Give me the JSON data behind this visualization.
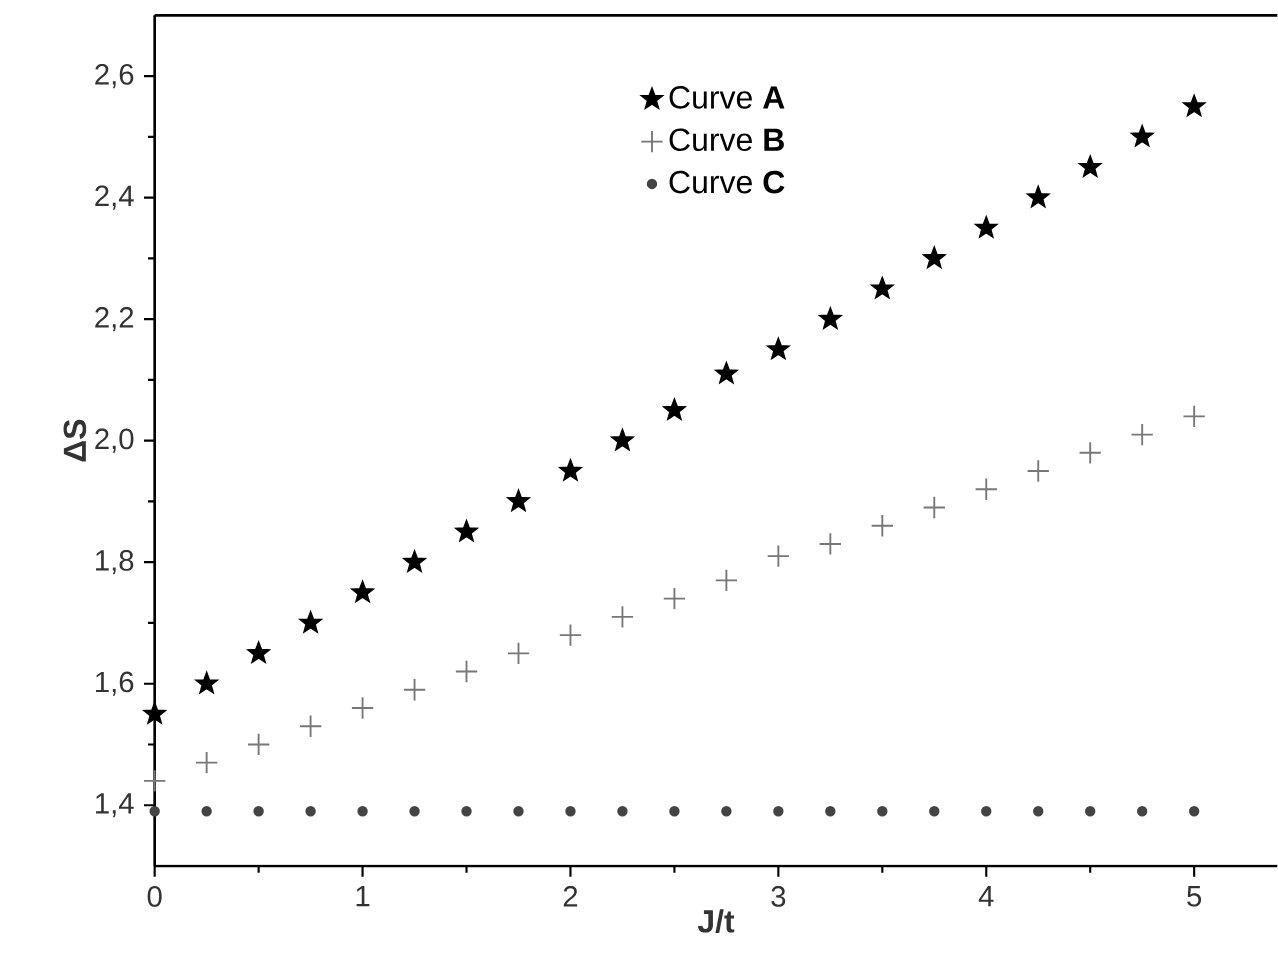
{
  "chart_data": {
    "type": "scatter",
    "xlabel": "J/t",
    "ylabel": "ΔS",
    "x": [
      0,
      0.25,
      0.5,
      0.75,
      1,
      1.25,
      1.5,
      1.75,
      2,
      2.25,
      2.5,
      2.75,
      3,
      3.25,
      3.5,
      3.75,
      4,
      4.25,
      4.5,
      4.75,
      5
    ],
    "series": [
      {
        "name": "Curve **A**",
        "color": "#000000",
        "marker": "star",
        "values": [
          1.55,
          1.6,
          1.65,
          1.7,
          1.75,
          1.8,
          1.85,
          1.9,
          1.95,
          2.0,
          2.05,
          2.11,
          2.15,
          2.2,
          2.25,
          2.3,
          2.35,
          2.4,
          2.45,
          2.5,
          2.55
        ]
      },
      {
        "name": "Curve **B**",
        "color": "#777777",
        "marker": "cross",
        "values": [
          1.44,
          1.47,
          1.5,
          1.53,
          1.56,
          1.59,
          1.62,
          1.65,
          1.68,
          1.71,
          1.74,
          1.77,
          1.81,
          1.83,
          1.86,
          1.89,
          1.92,
          1.95,
          1.98,
          2.01,
          2.04
        ]
      },
      {
        "name": "Curve **C**",
        "color": "#444444",
        "marker": "circle",
        "values": [
          1.39,
          1.39,
          1.39,
          1.39,
          1.39,
          1.39,
          1.39,
          1.39,
          1.39,
          1.39,
          1.39,
          1.39,
          1.39,
          1.39,
          1.39,
          1.39,
          1.39,
          1.39,
          1.39,
          1.39,
          1.39
        ]
      }
    ],
    "xlim": [
      0,
      5.4
    ],
    "ylim": [
      1.3,
      2.7
    ],
    "xticks": [
      0,
      1,
      2,
      3,
      4,
      5
    ],
    "yticks": [
      {
        "value": 1.4,
        "label": "1,4"
      },
      {
        "value": 1.6,
        "label": "1,6"
      },
      {
        "value": 1.8,
        "label": "1,8"
      },
      {
        "value": 2.0,
        "label": "2,0"
      },
      {
        "value": 2.2,
        "label": "2,2"
      },
      {
        "value": 2.4,
        "label": "2,4"
      },
      {
        "value": 2.6,
        "label": "2,6"
      }
    ],
    "legend": "top",
    "grid": false
  }
}
